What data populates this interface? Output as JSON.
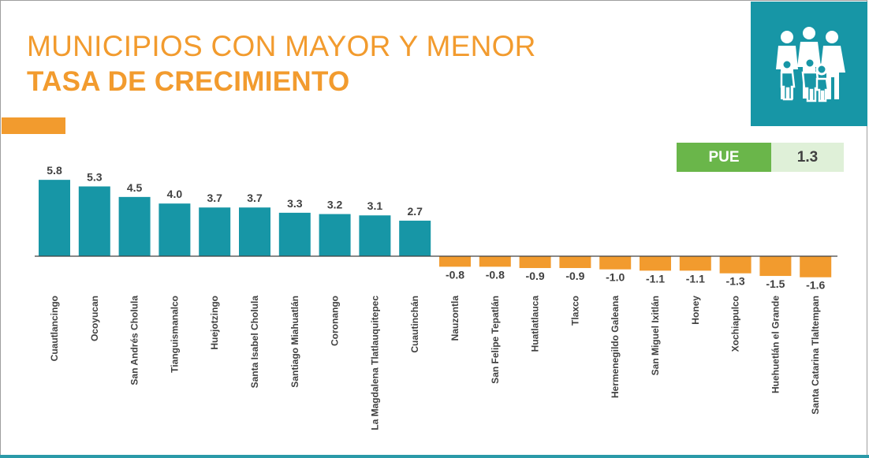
{
  "header": {
    "title_line1": "MUNICIPIOS CON MAYOR Y MENOR",
    "title_line2": "TASA DE CRECIMIENTO"
  },
  "badge": {
    "label": "PUE",
    "value": "1.3"
  },
  "icons": {
    "family": "family-group-icon"
  },
  "colors": {
    "title": "#f29b2e",
    "positive_bar": "#1796a6",
    "negative_bar": "#f29b2e",
    "badge_label_bg": "#6ab64a",
    "badge_value_bg": "#dff0d8",
    "icon_box_bg": "#1796a6"
  },
  "chart_data": {
    "type": "bar",
    "title": "MUNICIPIOS CON MAYOR Y MENOR TASA DE CRECIMIENTO",
    "categories": [
      "Cuautlancingo",
      "Ocoyucan",
      "San Andrés Cholula",
      "Tianguismanalco",
      "Huejotzingo",
      "Santa Isabel Cholula",
      "Santiago Miahuatlán",
      "Coronango",
      "La Magdalena Tlatlauquitepec",
      "Cuautinchán",
      "Nauzontla",
      "San Felipe Tepatlán",
      "Huatlatlauca",
      "Tlaxco",
      "Hermenegildo Galeana",
      "San Miguel Ixitlán",
      "Honey",
      "Xochiapulco",
      "Huehuetlán el Grande",
      "Santa Catarina Tlaltempan"
    ],
    "values": [
      5.8,
      5.3,
      4.5,
      4.0,
      3.7,
      3.7,
      3.3,
      3.2,
      3.1,
      2.7,
      -0.8,
      -0.8,
      -0.9,
      -0.9,
      -1.0,
      -1.1,
      -1.1,
      -1.3,
      -1.5,
      -1.6
    ],
    "value_labels": [
      "5.8",
      "5.3",
      "4.5",
      "4.0",
      "3.7",
      "3.7",
      "3.3",
      "3.2",
      "3.1",
      "2.7",
      "-0.8",
      "-0.8",
      "-0.9",
      "-0.9",
      "-1.0",
      "-1.1",
      "-1.1",
      "-1.3",
      "-1.5",
      "-1.6"
    ],
    "xlabel": "",
    "ylabel": "",
    "grid": false,
    "legend": "none",
    "baseline": 0
  }
}
